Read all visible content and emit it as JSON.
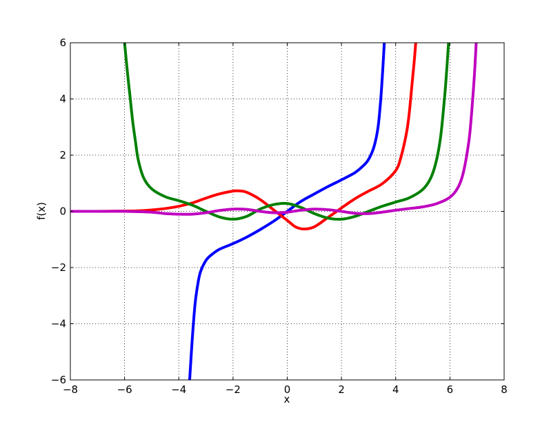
{
  "chart_data": {
    "type": "line",
    "title": "",
    "xlabel": "x",
    "ylabel": "f(x)",
    "xlim": [
      -8,
      8
    ],
    "ylim": [
      -6,
      6
    ],
    "xticks": [
      -8,
      -6,
      -4,
      -2,
      0,
      2,
      4,
      6,
      8
    ],
    "yticks": [
      -6,
      -4,
      -2,
      0,
      2,
      4,
      6
    ],
    "xtick_labels": [
      "−8",
      "−6",
      "−4",
      "−2",
      "0",
      "2",
      "4",
      "6",
      "8"
    ],
    "ytick_labels": [
      "−6",
      "−4",
      "−2",
      "0",
      "2",
      "4",
      "6"
    ],
    "grid": true,
    "series": [
      {
        "color": "#0000ff",
        "points": [
          [
            -3.6,
            -6.0
          ],
          [
            -3.5,
            -4.5
          ],
          [
            -3.4,
            -3.3
          ],
          [
            -3.3,
            -2.6
          ],
          [
            -3.2,
            -2.15
          ],
          [
            -3.0,
            -1.75
          ],
          [
            -2.8,
            -1.55
          ],
          [
            -2.5,
            -1.35
          ],
          [
            -2.0,
            -1.15
          ],
          [
            -1.5,
            -0.92
          ],
          [
            -1.0,
            -0.65
          ],
          [
            -0.5,
            -0.35
          ],
          [
            0.0,
            0.0
          ],
          [
            0.5,
            0.35
          ],
          [
            1.0,
            0.62
          ],
          [
            1.5,
            0.88
          ],
          [
            2.0,
            1.12
          ],
          [
            2.5,
            1.38
          ],
          [
            2.8,
            1.62
          ],
          [
            3.0,
            1.85
          ],
          [
            3.2,
            2.3
          ],
          [
            3.35,
            3.0
          ],
          [
            3.45,
            4.0
          ],
          [
            3.52,
            5.0
          ],
          [
            3.58,
            6.0
          ]
        ]
      },
      {
        "color": "#ff0000",
        "points": [
          [
            -8.0,
            0.0
          ],
          [
            -7.0,
            0.0
          ],
          [
            -6.0,
            0.01
          ],
          [
            -5.5,
            0.02
          ],
          [
            -5.0,
            0.05
          ],
          [
            -4.5,
            0.1
          ],
          [
            -4.0,
            0.18
          ],
          [
            -3.5,
            0.3
          ],
          [
            -3.0,
            0.47
          ],
          [
            -2.5,
            0.62
          ],
          [
            -2.0,
            0.72
          ],
          [
            -1.8,
            0.73
          ],
          [
            -1.5,
            0.68
          ],
          [
            -1.0,
            0.42
          ],
          [
            -0.5,
            0.05
          ],
          [
            0.0,
            -0.32
          ],
          [
            0.3,
            -0.55
          ],
          [
            0.6,
            -0.63
          ],
          [
            1.0,
            -0.55
          ],
          [
            1.5,
            -0.22
          ],
          [
            2.0,
            0.12
          ],
          [
            2.5,
            0.45
          ],
          [
            3.0,
            0.72
          ],
          [
            3.5,
            0.98
          ],
          [
            4.0,
            1.45
          ],
          [
            4.2,
            1.95
          ],
          [
            4.4,
            2.8
          ],
          [
            4.5,
            3.5
          ],
          [
            4.6,
            4.5
          ],
          [
            4.68,
            5.3
          ],
          [
            4.74,
            6.0
          ]
        ]
      },
      {
        "color": "#008000",
        "points": [
          [
            -6.0,
            6.0
          ],
          [
            -5.9,
            5.0
          ],
          [
            -5.8,
            4.1
          ],
          [
            -5.7,
            3.2
          ],
          [
            -5.6,
            2.5
          ],
          [
            -5.5,
            1.85
          ],
          [
            -5.3,
            1.2
          ],
          [
            -5.0,
            0.8
          ],
          [
            -4.5,
            0.52
          ],
          [
            -4.0,
            0.38
          ],
          [
            -3.5,
            0.22
          ],
          [
            -3.0,
            0.0
          ],
          [
            -2.5,
            -0.2
          ],
          [
            -2.0,
            -0.28
          ],
          [
            -1.5,
            -0.18
          ],
          [
            -1.0,
            0.08
          ],
          [
            -0.5,
            0.24
          ],
          [
            0.0,
            0.28
          ],
          [
            0.5,
            0.14
          ],
          [
            1.0,
            -0.08
          ],
          [
            1.5,
            -0.24
          ],
          [
            2.0,
            -0.28
          ],
          [
            2.5,
            -0.18
          ],
          [
            3.0,
            0.0
          ],
          [
            3.5,
            0.18
          ],
          [
            4.0,
            0.33
          ],
          [
            4.5,
            0.48
          ],
          [
            5.0,
            0.78
          ],
          [
            5.3,
            1.2
          ],
          [
            5.5,
            1.8
          ],
          [
            5.65,
            2.6
          ],
          [
            5.75,
            3.5
          ],
          [
            5.85,
            4.6
          ],
          [
            5.95,
            6.0
          ]
        ]
      },
      {
        "color": "#bf00bf",
        "points": [
          [
            -8.0,
            0.0
          ],
          [
            -7.0,
            0.0
          ],
          [
            -6.0,
            0.0
          ],
          [
            -5.0,
            -0.03
          ],
          [
            -4.5,
            -0.08
          ],
          [
            -4.0,
            -0.1
          ],
          [
            -3.5,
            -0.1
          ],
          [
            -3.0,
            -0.05
          ],
          [
            -2.5,
            0.03
          ],
          [
            -2.0,
            0.08
          ],
          [
            -1.5,
            0.07
          ],
          [
            -1.0,
            0.0
          ],
          [
            -0.5,
            -0.05
          ],
          [
            0.0,
            -0.03
          ],
          [
            0.5,
            0.04
          ],
          [
            1.0,
            0.08
          ],
          [
            1.5,
            0.06
          ],
          [
            2.0,
            0.0
          ],
          [
            2.5,
            -0.07
          ],
          [
            3.0,
            -0.08
          ],
          [
            3.5,
            -0.03
          ],
          [
            4.0,
            0.04
          ],
          [
            4.5,
            0.1
          ],
          [
            5.0,
            0.16
          ],
          [
            5.5,
            0.27
          ],
          [
            6.0,
            0.5
          ],
          [
            6.3,
            0.85
          ],
          [
            6.5,
            1.4
          ],
          [
            6.7,
            2.5
          ],
          [
            6.8,
            3.5
          ],
          [
            6.9,
            4.8
          ],
          [
            6.97,
            6.0
          ]
        ]
      }
    ]
  }
}
